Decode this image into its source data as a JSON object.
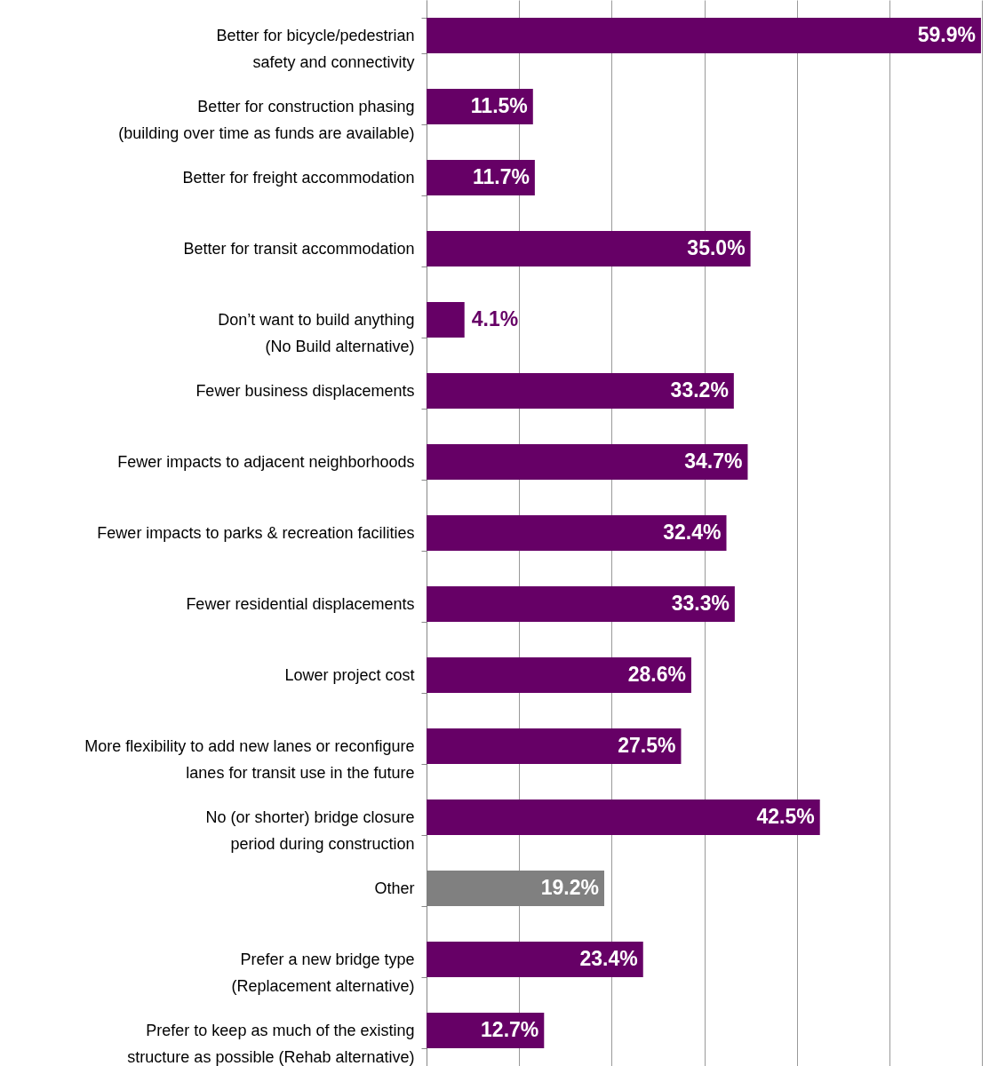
{
  "chart_data": {
    "type": "bar",
    "orientation": "horizontal",
    "categories": [
      "Better for bicycle/pedestrian\nsafety and connectivity",
      "Better for construction phasing\n(building over time as funds are available)",
      "Better for freight accommodation",
      "Better for transit accommodation",
      "Don’t want to build anything\n(No Build alternative)",
      "Fewer business displacements",
      "Fewer impacts to adjacent neighborhoods",
      "Fewer impacts to parks & recreation facilities",
      "Fewer residential displacements",
      "Lower project cost",
      "More flexibility to add new lanes or reconfigure\nlanes for transit use in the future",
      "No (or shorter) bridge closure\nperiod during construction",
      "Other",
      "Prefer a new bridge type\n(Replacement alternative)",
      "Prefer to keep as much of the existing\nstructure as possible (Rehab alternative)"
    ],
    "values": [
      59.9,
      11.5,
      11.7,
      35.0,
      4.1,
      33.2,
      34.7,
      32.4,
      33.3,
      28.6,
      27.5,
      42.5,
      19.2,
      23.4,
      12.7
    ],
    "value_labels": [
      "59.9%",
      "11.5%",
      "11.7%",
      "35.0%",
      "4.1%",
      "33.2%",
      "34.7%",
      "32.4%",
      "33.3%",
      "28.6%",
      "27.5%",
      "42.5%",
      "19.2%",
      "23.4%",
      "12.7%"
    ],
    "colors": [
      "#660066",
      "#660066",
      "#660066",
      "#660066",
      "#660066",
      "#660066",
      "#660066",
      "#660066",
      "#660066",
      "#660066",
      "#660066",
      "#660066",
      "#808080",
      "#660066",
      "#660066"
    ],
    "xlim": [
      0,
      60
    ],
    "xticks": [
      {
        "value": 0,
        "label": null
      },
      {
        "value": 10,
        "label": null
      },
      {
        "value": 20,
        "label": null
      },
      {
        "value": 30,
        "label": null
      },
      {
        "value": 40,
        "label": null
      },
      {
        "value": 50,
        "label": null
      },
      {
        "value": 60,
        "label": null
      }
    ],
    "grid": "x",
    "tick_labels": "y"
  }
}
